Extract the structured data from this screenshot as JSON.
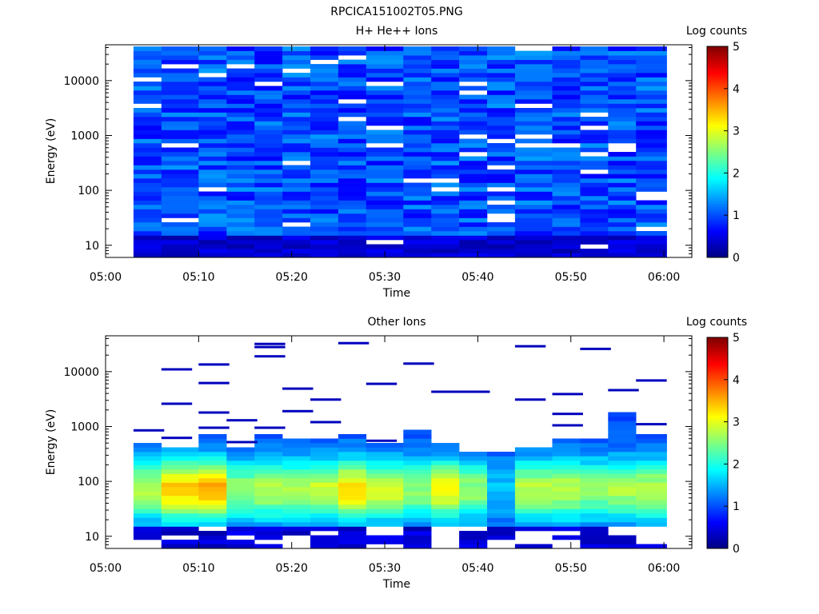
{
  "figure_title": "RPCICA151002T05.PNG",
  "chart_data": [
    {
      "type": "heatmap",
      "title": "H+ He++ Ions",
      "xlabel": "Time",
      "ylabel": "Energy (eV)",
      "x_ticks": [
        "05:00",
        "05:10",
        "05:20",
        "05:30",
        "05:40",
        "05:50",
        "06:00"
      ],
      "xlim": [
        "05:00",
        "06:03"
      ],
      "y_scale": "log",
      "y_ticks": [
        10,
        100,
        1000,
        10000
      ],
      "y_tick_labels": [
        "10",
        "100",
        "1000",
        "10000"
      ],
      "ylim": [
        6,
        45000
      ],
      "time_bins": [
        "05:03",
        "05:06",
        "05:10",
        "05:13",
        "05:16",
        "05:19",
        "05:22",
        "05:25",
        "05:28",
        "05:32",
        "05:35",
        "05:38",
        "05:41",
        "05:44",
        "05:48",
        "05:51",
        "05:54",
        "05:57"
      ],
      "background_log_counts": 1.0,
      "energy_range_eV": [
        6,
        42000
      ],
      "notes_values": {
        "low_energy_rows_log_counts": [
          0.3,
          0.5,
          0.2
        ]
      },
      "colorbar": {
        "label": "Log counts",
        "min": 0,
        "max": 5,
        "ticks": [
          "0",
          "1",
          "2",
          "3",
          "4",
          "5"
        ]
      }
    },
    {
      "type": "heatmap",
      "title": "Other Ions",
      "xlabel": "Time",
      "ylabel": "Energy (eV)",
      "x_ticks": [
        "05:00",
        "05:10",
        "05:20",
        "05:30",
        "05:40",
        "05:50",
        "06:00"
      ],
      "xlim": [
        "05:00",
        "06:03"
      ],
      "y_scale": "log",
      "y_ticks": [
        10,
        100,
        1000,
        10000
      ],
      "y_tick_labels": [
        "10",
        "100",
        "1000",
        "10000"
      ],
      "ylim": [
        6,
        45000
      ],
      "time_bins": [
        "05:03",
        "05:06",
        "05:10",
        "05:13",
        "05:16",
        "05:19",
        "05:22",
        "05:25",
        "05:28",
        "05:32",
        "05:35",
        "05:38",
        "05:41",
        "05:44",
        "05:48",
        "05:51",
        "05:54",
        "05:57"
      ],
      "band_top_eV": [
        520,
        430,
        700,
        440,
        680,
        650,
        620,
        780,
        480,
        850,
        490,
        380,
        330,
        450,
        620,
        560,
        1700,
        700
      ],
      "peak_log_counts": [
        2.8,
        3.4,
        3.6,
        2.6,
        2.8,
        2.7,
        2.9,
        3.3,
        2.9,
        2.6,
        3.1,
        2.6,
        1.6,
        2.8,
        2.8,
        2.6,
        2.7,
        2.8
      ],
      "sparse_high_energy_tracks": [
        {
          "time": "05:03",
          "energy_eV": [
            850
          ]
        },
        {
          "time": "05:06",
          "energy_eV": [
            11000,
            2600,
            620
          ]
        },
        {
          "time": "05:10",
          "energy_eV": [
            13500,
            6200,
            1800,
            950
          ]
        },
        {
          "time": "05:13",
          "energy_eV": [
            1300,
            520
          ]
        },
        {
          "time": "05:16",
          "energy_eV": [
            32000,
            28000,
            19000,
            950
          ]
        },
        {
          "time": "05:19",
          "energy_eV": [
            4900,
            1900
          ]
        },
        {
          "time": "05:22",
          "energy_eV": [
            3100,
            1200
          ]
        },
        {
          "time": "05:25",
          "energy_eV": [
            33000
          ]
        },
        {
          "time": "05:28",
          "energy_eV": [
            6000,
            550
          ]
        },
        {
          "time": "05:32",
          "energy_eV": [
            14000
          ]
        },
        {
          "time": "05:35",
          "energy_eV": [
            4300
          ]
        },
        {
          "time": "05:38",
          "energy_eV": [
            4300
          ]
        },
        {
          "time": "05:44",
          "energy_eV": [
            29000,
            3100
          ]
        },
        {
          "time": "05:48",
          "energy_eV": [
            3900,
            1700,
            1050
          ]
        },
        {
          "time": "05:51",
          "energy_eV": [
            26000
          ]
        },
        {
          "time": "05:54",
          "energy_eV": [
            4600
          ]
        },
        {
          "time": "05:57",
          "energy_eV": [
            6900,
            1100
          ]
        }
      ],
      "colorbar": {
        "label": "Log counts",
        "min": 0,
        "max": 5,
        "ticks": [
          "0",
          "1",
          "2",
          "3",
          "4",
          "5"
        ]
      }
    }
  ]
}
